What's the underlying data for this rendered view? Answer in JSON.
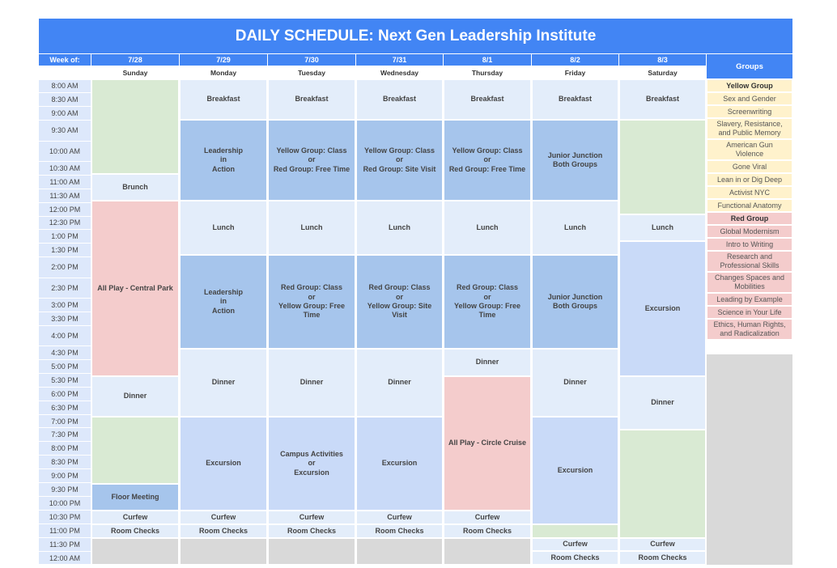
{
  "title": "DAILY SCHEDULE: Next Gen Leadership Institute",
  "week_of_label": "Week of:",
  "groups_label": "Groups",
  "days": [
    {
      "date": "7/28",
      "day": "Sunday"
    },
    {
      "date": "7/29",
      "day": "Monday"
    },
    {
      "date": "7/30",
      "day": "Tuesday"
    },
    {
      "date": "7/31",
      "day": "Wednesday"
    },
    {
      "date": "8/1",
      "day": "Thursday"
    },
    {
      "date": "8/2",
      "day": "Friday"
    },
    {
      "date": "8/3",
      "day": "Saturday"
    }
  ],
  "times": [
    "8:00 AM",
    "8:30 AM",
    "9:00 AM",
    "9:30 AM",
    "10:00 AM",
    "10:30 AM",
    "11:00 AM",
    "11:30 AM",
    "12:00 PM",
    "12:30 PM",
    "1:00 PM",
    "1:30 PM",
    "2:00 PM",
    "2:30 PM",
    "3:00 PM",
    "3:30 PM",
    "4:00 PM",
    "4:30 PM",
    "5:00 PM",
    "5:30 PM",
    "6:00 PM",
    "6:30 PM",
    "7:00 PM",
    "7:30 PM",
    "8:00 PM",
    "8:30 PM",
    "9:00 PM",
    "9:30 PM",
    "10:00 PM",
    "10:30 PM",
    "11:00 PM",
    "11:30 PM",
    "12:00 AM"
  ],
  "events": {
    "sun_brunch": "Brunch",
    "sun_allplay": "All Play - Central Park",
    "sun_dinner": "Dinner",
    "sun_floor": "Floor Meeting",
    "sun_curfew": "Curfew",
    "sun_room": "Room Checks",
    "mon_breakfast": "Breakfast",
    "mon_leadership1": "Leadership\nin\nAction",
    "mon_lunch": "Lunch",
    "mon_leadership2": "Leadership\nin\nAction",
    "mon_dinner": "Dinner",
    "mon_excursion": "Excursion",
    "mon_curfew": "Curfew",
    "mon_room": "Room Checks",
    "tue_breakfast": "Breakfast",
    "tue_am": "Yellow Group: Class\nor\nRed Group: Free Time",
    "tue_lunch": "Lunch",
    "tue_pm": "Red Group: Class\nor\nYellow Group: Free\nTime",
    "tue_dinner": "Dinner",
    "tue_evening": "Campus Activities\nor\nExcursion",
    "tue_curfew": "Curfew",
    "tue_room": "Room Checks",
    "wed_breakfast": "Breakfast",
    "wed_am": "Yellow Group: Class\nor\nRed Group: Site Visit",
    "wed_lunch": "Lunch",
    "wed_pm": "Red Group: Class\nor\nYellow Group: Site\nVisit",
    "wed_dinner": "Dinner",
    "wed_excursion": "Excursion",
    "wed_curfew": "Curfew",
    "wed_room": "Room Checks",
    "thu_breakfast": "Breakfast",
    "thu_am": "Yellow Group: Class\nor\nRed Group: Free Time",
    "thu_lunch": "Lunch",
    "thu_pm": "Red Group: Class\nor\nYellow Group: Free\nTime",
    "thu_dinner": "Dinner",
    "thu_allplay": "All Play - Circle Cruise",
    "thu_curfew": "Curfew",
    "thu_room": "Room Checks",
    "fri_breakfast": "Breakfast",
    "fri_am": "Junior Junction\nBoth Groups",
    "fri_lunch": "Lunch",
    "fri_pm": "Junior Junction\nBoth Groups",
    "fri_dinner": "Dinner",
    "fri_excursion": "Excursion",
    "fri_curfew": "Curfew",
    "fri_room": "Room Checks",
    "sat_breakfast": "Breakfast",
    "sat_lunch": "Lunch",
    "sat_excursion": "Excursion",
    "sat_dinner": "Dinner",
    "sat_curfew": "Curfew",
    "sat_room": "Room Checks"
  },
  "groups": [
    {
      "label": "Yellow Group",
      "color": "yellow",
      "header": true
    },
    {
      "label": "Sex and Gender",
      "color": "yellow"
    },
    {
      "label": "Screenwriting",
      "color": "yellow"
    },
    {
      "label": "Slavery, Resistance,\nand Public Memory",
      "color": "yellow"
    },
    {
      "label": "American Gun\nViolence",
      "color": "yellow"
    },
    {
      "label": "Gone Viral",
      "color": "yellow"
    },
    {
      "label": "Lean in or Dig Deep",
      "color": "yellow"
    },
    {
      "label": "Activist NYC",
      "color": "yellow"
    },
    {
      "label": "Functional Anatomy",
      "color": "yellow"
    },
    {
      "label": "Red Group",
      "color": "red",
      "header": true
    },
    {
      "label": "Global Modernism",
      "color": "red"
    },
    {
      "label": "Intro to Writing",
      "color": "red"
    },
    {
      "label": "Research and\nProfessional Skills",
      "color": "red"
    },
    {
      "label": "Changes Spaces and\nMobilities",
      "color": "red"
    },
    {
      "label": "Leading by Example",
      "color": "red"
    },
    {
      "label": "Science in Your Life",
      "color": "red"
    },
    {
      "label": "Ethics, Human Rights,\nand Radicalization",
      "color": "red"
    }
  ],
  "colors": {
    "header_blue": "#4285f4",
    "green": "#d9ead3",
    "light_blue": "#d4e3f6",
    "mid_blue": "#a6c5ec",
    "pale_blue": "#c9daf8",
    "pink": "#f4cccc",
    "gray": "#d9d9d9",
    "yellow": "#fff2cc"
  }
}
